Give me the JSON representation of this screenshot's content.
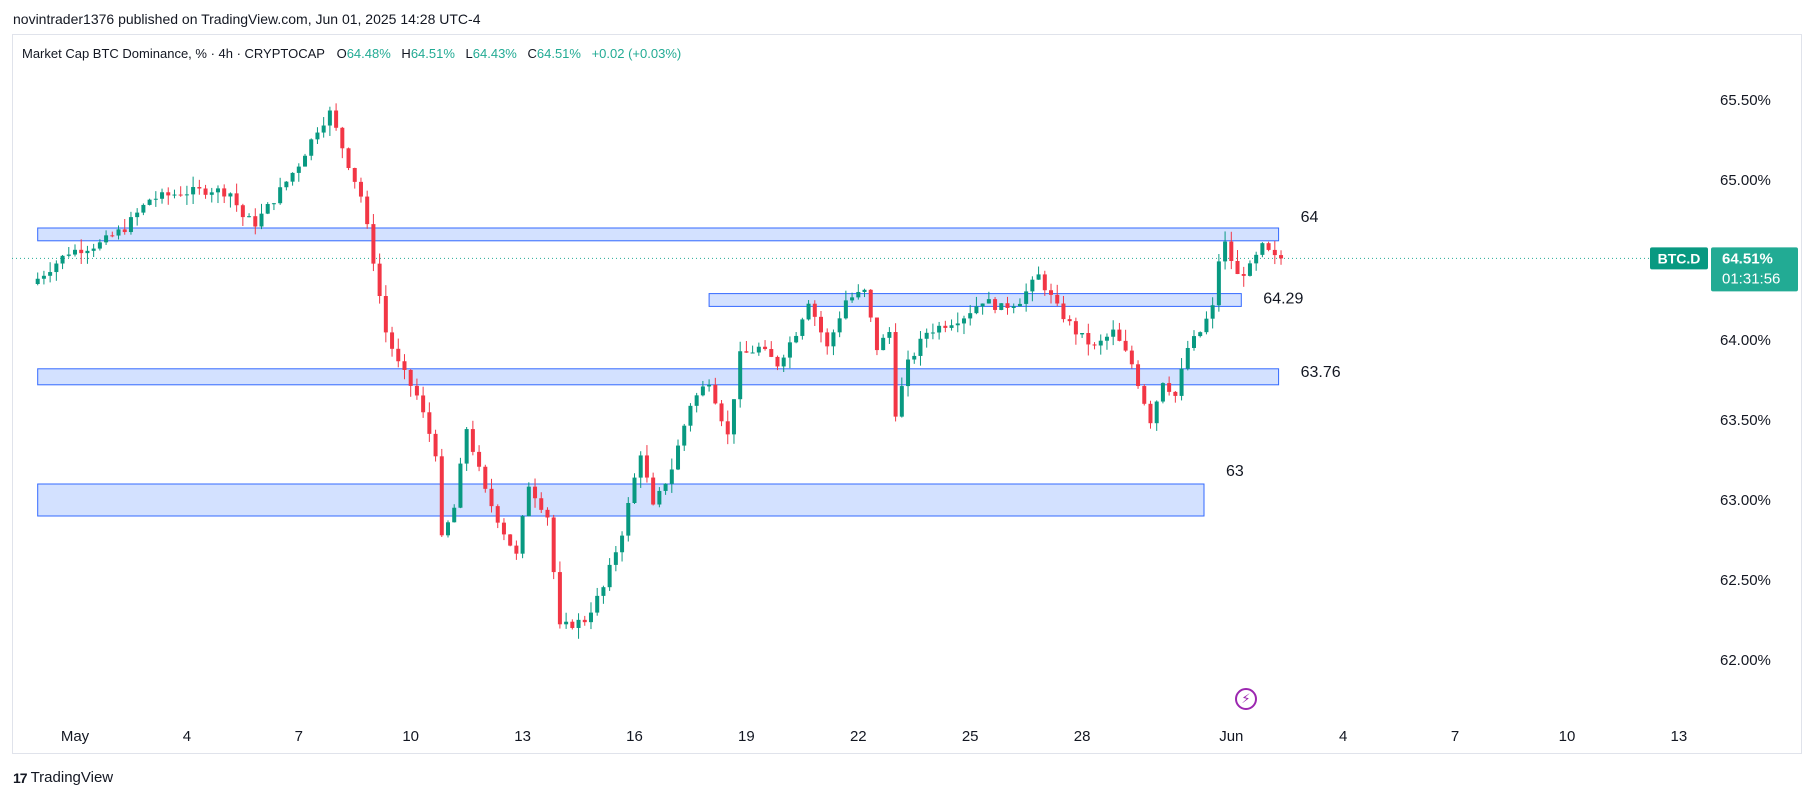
{
  "header": {
    "published_by": "novintrader1376 published on TradingView.com, Jun 01, 2025 14:28 UTC-4"
  },
  "legend": {
    "symbol": "Market Cap BTC Dominance, % · 4h · CRYPTOCAP",
    "o_label": "O",
    "o_value": "64.48%",
    "h_label": "H",
    "h_value": "64.51%",
    "l_label": "L",
    "l_value": "64.43%",
    "c_label": "C",
    "c_value": "64.51%",
    "change": "+0.02 (+0.03%)"
  },
  "price_badge": {
    "ticker": "BTC.D",
    "price": "64.51%",
    "countdown": "01:31:56"
  },
  "footer": {
    "brand": "TradingView",
    "mark": "17"
  },
  "icons": {
    "lightning": "lightning-icon"
  },
  "colors": {
    "up": "#089981",
    "down": "#f23645",
    "zone_fill": "#d1e0ff",
    "zone_stroke": "#2962ff",
    "badge": "#22ab94",
    "ticker_bg": "#089981",
    "grid": "#f0f3fa",
    "dotted": "#22ab94"
  },
  "chart_data": {
    "type": "candlestick",
    "y_axis": {
      "ylim": [
        61.6,
        65.75
      ],
      "ticks": [
        65.5,
        65.0,
        64.5,
        64.0,
        63.5,
        63.0,
        62.5,
        62.0
      ],
      "tick_labels": [
        "65.50%",
        "65.00%",
        "",
        "64.00%",
        "63.50%",
        "63.00%",
        "62.50%",
        "62.00%"
      ]
    },
    "x_axis": {
      "start": "2025-04-30",
      "end": "2025-06-13",
      "ticks": [
        {
          "date": "2025-05-01",
          "label": "May"
        },
        {
          "date": "2025-05-04",
          "label": "4"
        },
        {
          "date": "2025-05-07",
          "label": "7"
        },
        {
          "date": "2025-05-10",
          "label": "10"
        },
        {
          "date": "2025-05-13",
          "label": "13"
        },
        {
          "date": "2025-05-16",
          "label": "16"
        },
        {
          "date": "2025-05-19",
          "label": "19"
        },
        {
          "date": "2025-05-22",
          "label": "22"
        },
        {
          "date": "2025-05-25",
          "label": "25"
        },
        {
          "date": "2025-05-28",
          "label": "28"
        },
        {
          "date": "2025-06-01",
          "label": "Jun"
        },
        {
          "date": "2025-06-04",
          "label": "4"
        },
        {
          "date": "2025-06-07",
          "label": "7"
        },
        {
          "date": "2025-06-10",
          "label": "10"
        },
        {
          "date": "2025-06-13",
          "label": "13"
        }
      ]
    },
    "last_close": 64.51,
    "zones": [
      {
        "label": "64",
        "from": 64.62,
        "to": 64.7,
        "start": "2025-04-30",
        "end": "2025-06-02"
      },
      {
        "label": "64.29",
        "from": 64.21,
        "to": 64.29,
        "start": "2025-05-18",
        "end": "2025-06-01"
      },
      {
        "label": "63.76",
        "from": 63.72,
        "to": 63.82,
        "start": "2025-04-30",
        "end": "2025-06-02"
      },
      {
        "label": "63",
        "from": 62.9,
        "to": 63.1,
        "start": "2025-04-30",
        "end": "2025-05-31"
      }
    ],
    "anchors": [
      {
        "t": "2025-04-30T00:00",
        "c": 64.35
      },
      {
        "t": "2025-05-01T00:00",
        "c": 64.55
      },
      {
        "t": "2025-05-01T20:00",
        "c": 64.6
      },
      {
        "t": "2025-05-02T12:00",
        "c": 64.7
      },
      {
        "t": "2025-05-03T04:00",
        "c": 64.88
      },
      {
        "t": "2025-05-04T00:00",
        "c": 64.92
      },
      {
        "t": "2025-05-04T20:00",
        "c": 64.94
      },
      {
        "t": "2025-05-05T08:00",
        "c": 64.92
      },
      {
        "t": "2025-05-05T16:00",
        "c": 64.77
      },
      {
        "t": "2025-05-06T00:00",
        "c": 64.73
      },
      {
        "t": "2025-05-06T12:00",
        "c": 64.88
      },
      {
        "t": "2025-05-07T04:00",
        "c": 65.1
      },
      {
        "t": "2025-05-07T16:00",
        "c": 65.32
      },
      {
        "t": "2025-05-08T00:00",
        "c": 65.42
      },
      {
        "t": "2025-05-08T12:00",
        "c": 65.1
      },
      {
        "t": "2025-05-08T20:00",
        "c": 64.9
      },
      {
        "t": "2025-05-09T04:00",
        "c": 64.5
      },
      {
        "t": "2025-05-09T12:00",
        "c": 64.05
      },
      {
        "t": "2025-05-09T20:00",
        "c": 63.85
      },
      {
        "t": "2025-05-10T08:00",
        "c": 63.65
      },
      {
        "t": "2025-05-10T20:00",
        "c": 63.3
      },
      {
        "t": "2025-05-11T00:00",
        "c": 62.75
      },
      {
        "t": "2025-05-11T08:00",
        "c": 62.95
      },
      {
        "t": "2025-05-11T16:00",
        "c": 63.45
      },
      {
        "t": "2025-05-12T04:00",
        "c": 63.05
      },
      {
        "t": "2025-05-12T16:00",
        "c": 62.8
      },
      {
        "t": "2025-05-13T00:00",
        "c": 62.65
      },
      {
        "t": "2025-05-13T08:00",
        "c": 63.1
      },
      {
        "t": "2025-05-13T20:00",
        "c": 62.9
      },
      {
        "t": "2025-05-14T04:00",
        "c": 62.2
      },
      {
        "t": "2025-05-14T20:00",
        "c": 62.25
      },
      {
        "t": "2025-05-15T08:00",
        "c": 62.45
      },
      {
        "t": "2025-05-15T20:00",
        "c": 62.8
      },
      {
        "t": "2025-05-16T08:00",
        "c": 63.3
      },
      {
        "t": "2025-05-16T16:00",
        "c": 62.95
      },
      {
        "t": "2025-05-17T04:00",
        "c": 63.2
      },
      {
        "t": "2025-05-17T16:00",
        "c": 63.6
      },
      {
        "t": "2025-05-18T04:00",
        "c": 63.75
      },
      {
        "t": "2025-05-18T16:00",
        "c": 63.4
      },
      {
        "t": "2025-05-19T00:00",
        "c": 63.9
      },
      {
        "t": "2025-05-19T12:00",
        "c": 63.95
      },
      {
        "t": "2025-05-20T00:00",
        "c": 63.85
      },
      {
        "t": "2025-05-20T12:00",
        "c": 64.05
      },
      {
        "t": "2025-05-20T20:00",
        "c": 64.25
      },
      {
        "t": "2025-05-21T08:00",
        "c": 63.95
      },
      {
        "t": "2025-05-21T20:00",
        "c": 64.25
      },
      {
        "t": "2025-05-22T08:00",
        "c": 64.3
      },
      {
        "t": "2025-05-22T16:00",
        "c": 63.95
      },
      {
        "t": "2025-05-23T00:00",
        "c": 64.05
      },
      {
        "t": "2025-05-23T04:00",
        "c": 63.55
      },
      {
        "t": "2025-05-23T12:00",
        "c": 63.85
      },
      {
        "t": "2025-05-24T00:00",
        "c": 64.05
      },
      {
        "t": "2025-05-24T12:00",
        "c": 64.1
      },
      {
        "t": "2025-05-25T00:00",
        "c": 64.15
      },
      {
        "t": "2025-05-25T12:00",
        "c": 64.25
      },
      {
        "t": "2025-05-26T00:00",
        "c": 64.2
      },
      {
        "t": "2025-05-26T12:00",
        "c": 64.25
      },
      {
        "t": "2025-05-27T00:00",
        "c": 64.4
      },
      {
        "t": "2025-05-27T12:00",
        "c": 64.2
      },
      {
        "t": "2025-05-28T00:00",
        "c": 64.05
      },
      {
        "t": "2025-05-28T12:00",
        "c": 63.95
      },
      {
        "t": "2025-05-29T00:00",
        "c": 64.05
      },
      {
        "t": "2025-05-29T12:00",
        "c": 63.85
      },
      {
        "t": "2025-05-30T00:00",
        "c": 63.5
      },
      {
        "t": "2025-05-30T08:00",
        "c": 63.75
      },
      {
        "t": "2025-05-30T16:00",
        "c": 63.65
      },
      {
        "t": "2025-05-31T00:00",
        "c": 63.95
      },
      {
        "t": "2025-05-31T08:00",
        "c": 64.05
      },
      {
        "t": "2025-05-31T16:00",
        "c": 64.2
      },
      {
        "t": "2025-05-31T20:00",
        "c": 64.5
      },
      {
        "t": "2025-06-01T00:00",
        "c": 64.6
      },
      {
        "t": "2025-06-01T08:00",
        "c": 64.4
      },
      {
        "t": "2025-06-01T16:00",
        "c": 64.45
      },
      {
        "t": "2025-06-02T00:00",
        "c": 64.58
      },
      {
        "t": "2025-06-02T08:00",
        "c": 64.51
      }
    ]
  }
}
